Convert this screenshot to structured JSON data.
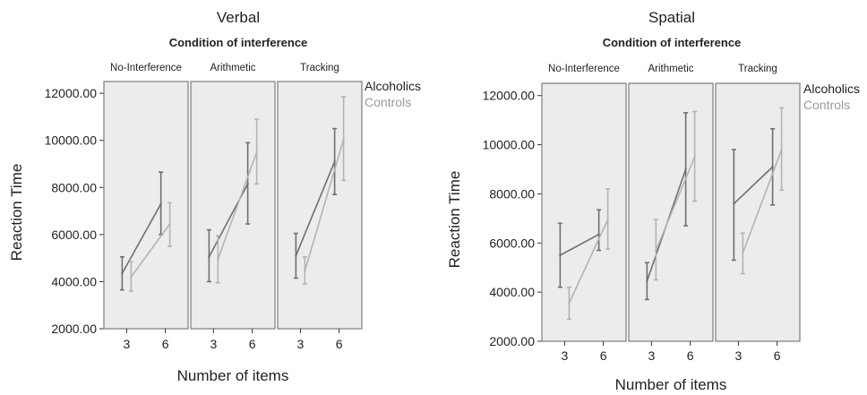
{
  "figure": {
    "legend": [
      "Alcoholics",
      "Controls"
    ],
    "colors": {
      "Alcoholics": "#6f6f6f",
      "Controls": "#b3b3b3",
      "panel_bg": "#ececec",
      "panel_border": "#7d7d7d"
    }
  },
  "chart_data": [
    {
      "type": "line",
      "title": "Verbal",
      "facet_title": "Condition of interference",
      "facets": [
        "No-Interference",
        "Arithmetic",
        "Tracking"
      ],
      "xlabel": "Number of items",
      "ylabel": "Reaction Time",
      "categories": [
        "3",
        "6"
      ],
      "ylim": [
        2000,
        12500
      ],
      "yticks": [
        "2000.00",
        "4000.00",
        "6000.00",
        "8000.00",
        "10000.00",
        "12000.00"
      ],
      "grid": false,
      "legend_position": "top-right",
      "series": [
        {
          "name": "Alcoholics",
          "panels": [
            {
              "means": [
                4350,
                7300
              ],
              "lower": [
                3650,
                6000
              ],
              "upper": [
                5050,
                8650
              ]
            },
            {
              "means": [
                5050,
                8150
              ],
              "lower": [
                4000,
                6450
              ],
              "upper": [
                6200,
                9900
              ]
            },
            {
              "means": [
                5100,
                9100
              ],
              "lower": [
                4150,
                7700
              ],
              "upper": [
                6050,
                10500
              ]
            }
          ]
        },
        {
          "name": "Controls",
          "panels": [
            {
              "means": [
                4200,
                6450
              ],
              "lower": [
                3600,
                5500
              ],
              "upper": [
                4850,
                7350
              ]
            },
            {
              "means": [
                4950,
                9500
              ],
              "lower": [
                3950,
                8150
              ],
              "upper": [
                5950,
                10900
              ]
            },
            {
              "means": [
                4450,
                10050
              ],
              "lower": [
                3900,
                8300
              ],
              "upper": [
                5050,
                11850
              ]
            }
          ]
        }
      ]
    },
    {
      "type": "line",
      "title": "Spatial",
      "facet_title": "Condition of interference",
      "facets": [
        "No-Interference",
        "Arithmetic",
        "Tracking"
      ],
      "xlabel": "Number of items",
      "ylabel": "Reaction Time",
      "categories": [
        "3",
        "6"
      ],
      "ylim": [
        2000,
        12500
      ],
      "yticks": [
        "2000.00",
        "4000.00",
        "6000.00",
        "8000.00",
        "10000.00",
        "12000.00"
      ],
      "grid": false,
      "legend_position": "top-right",
      "series": [
        {
          "name": "Alcoholics",
          "panels": [
            {
              "means": [
                5500,
                6350
              ],
              "lower": [
                4200,
                5700
              ],
              "upper": [
                6800,
                7350
              ]
            },
            {
              "means": [
                4450,
                9000
              ],
              "lower": [
                3700,
                6700
              ],
              "upper": [
                5200,
                11300
              ]
            },
            {
              "means": [
                7600,
                9100
              ],
              "lower": [
                5300,
                7550
              ],
              "upper": [
                9800,
                10650
              ]
            }
          ]
        },
        {
          "name": "Controls",
          "panels": [
            {
              "means": [
                3550,
                6950
              ],
              "lower": [
                2900,
                5750
              ],
              "upper": [
                4200,
                8200
              ]
            },
            {
              "means": [
                5700,
                9500
              ],
              "lower": [
                4500,
                7700
              ],
              "upper": [
                6950,
                11350
              ]
            },
            {
              "means": [
                5600,
                9800
              ],
              "lower": [
                4750,
                8150
              ],
              "upper": [
                6400,
                11500
              ]
            }
          ]
        }
      ]
    }
  ]
}
